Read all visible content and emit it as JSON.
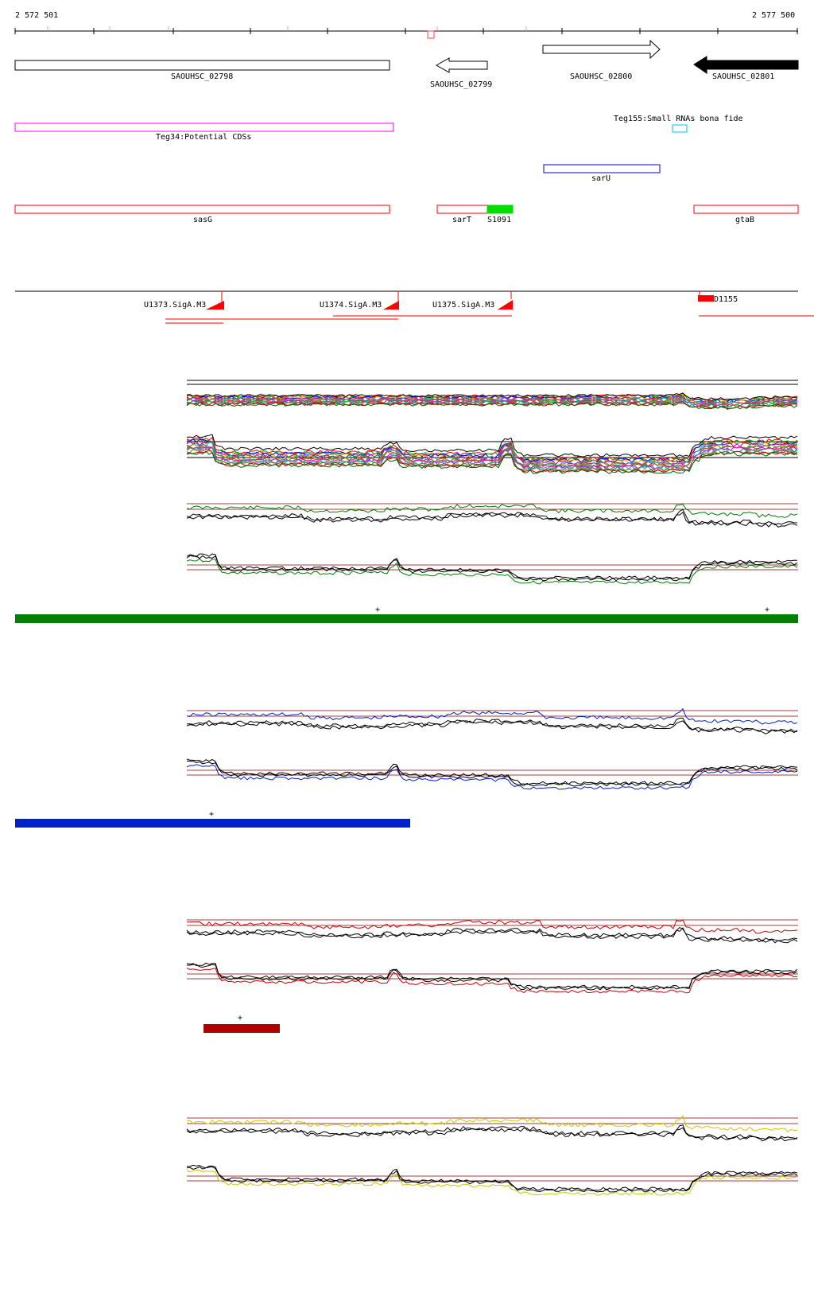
{
  "coordinates": {
    "start": "2 572 501",
    "end": "2 577 500"
  },
  "genes": [
    {
      "label": "SAOUHSC_02798",
      "strand": "none"
    },
    {
      "label": "SAOUHSC_02799",
      "strand": "minus"
    },
    {
      "label": "SAOUHSC_02800",
      "strand": "plus"
    },
    {
      "label": "SAOUHSC_02801",
      "strand": "minus"
    }
  ],
  "features": [
    {
      "label": "Teg34:Potential CDSs",
      "color": "#ff00ff"
    },
    {
      "label": "Teg155:Small RNAs bona fide",
      "color": "#00c0ff"
    },
    {
      "label": "sarU",
      "color": "#0000cc"
    },
    {
      "label": "sasG",
      "color": "#ff0000"
    },
    {
      "label": "sarT",
      "color": "#ff0000"
    },
    {
      "label": "S1091",
      "color": "#00dd00"
    },
    {
      "label": "gtaB",
      "color": "#ff0000"
    }
  ],
  "promoters": [
    {
      "label": "U1373.SigA.M3"
    },
    {
      "label": "U1374.SigA.M3"
    },
    {
      "label": "U1375.SigA.M3"
    },
    {
      "label": "D1155"
    }
  ],
  "conditions": [
    {
      "color": "#008000",
      "markers": [
        "+",
        "+"
      ]
    },
    {
      "color": "#0022cc",
      "markers": [
        "+"
      ]
    },
    {
      "color": "#b00000",
      "markers": [
        "+"
      ]
    },
    {
      "color": "#c8c800",
      "markers": []
    }
  ]
}
